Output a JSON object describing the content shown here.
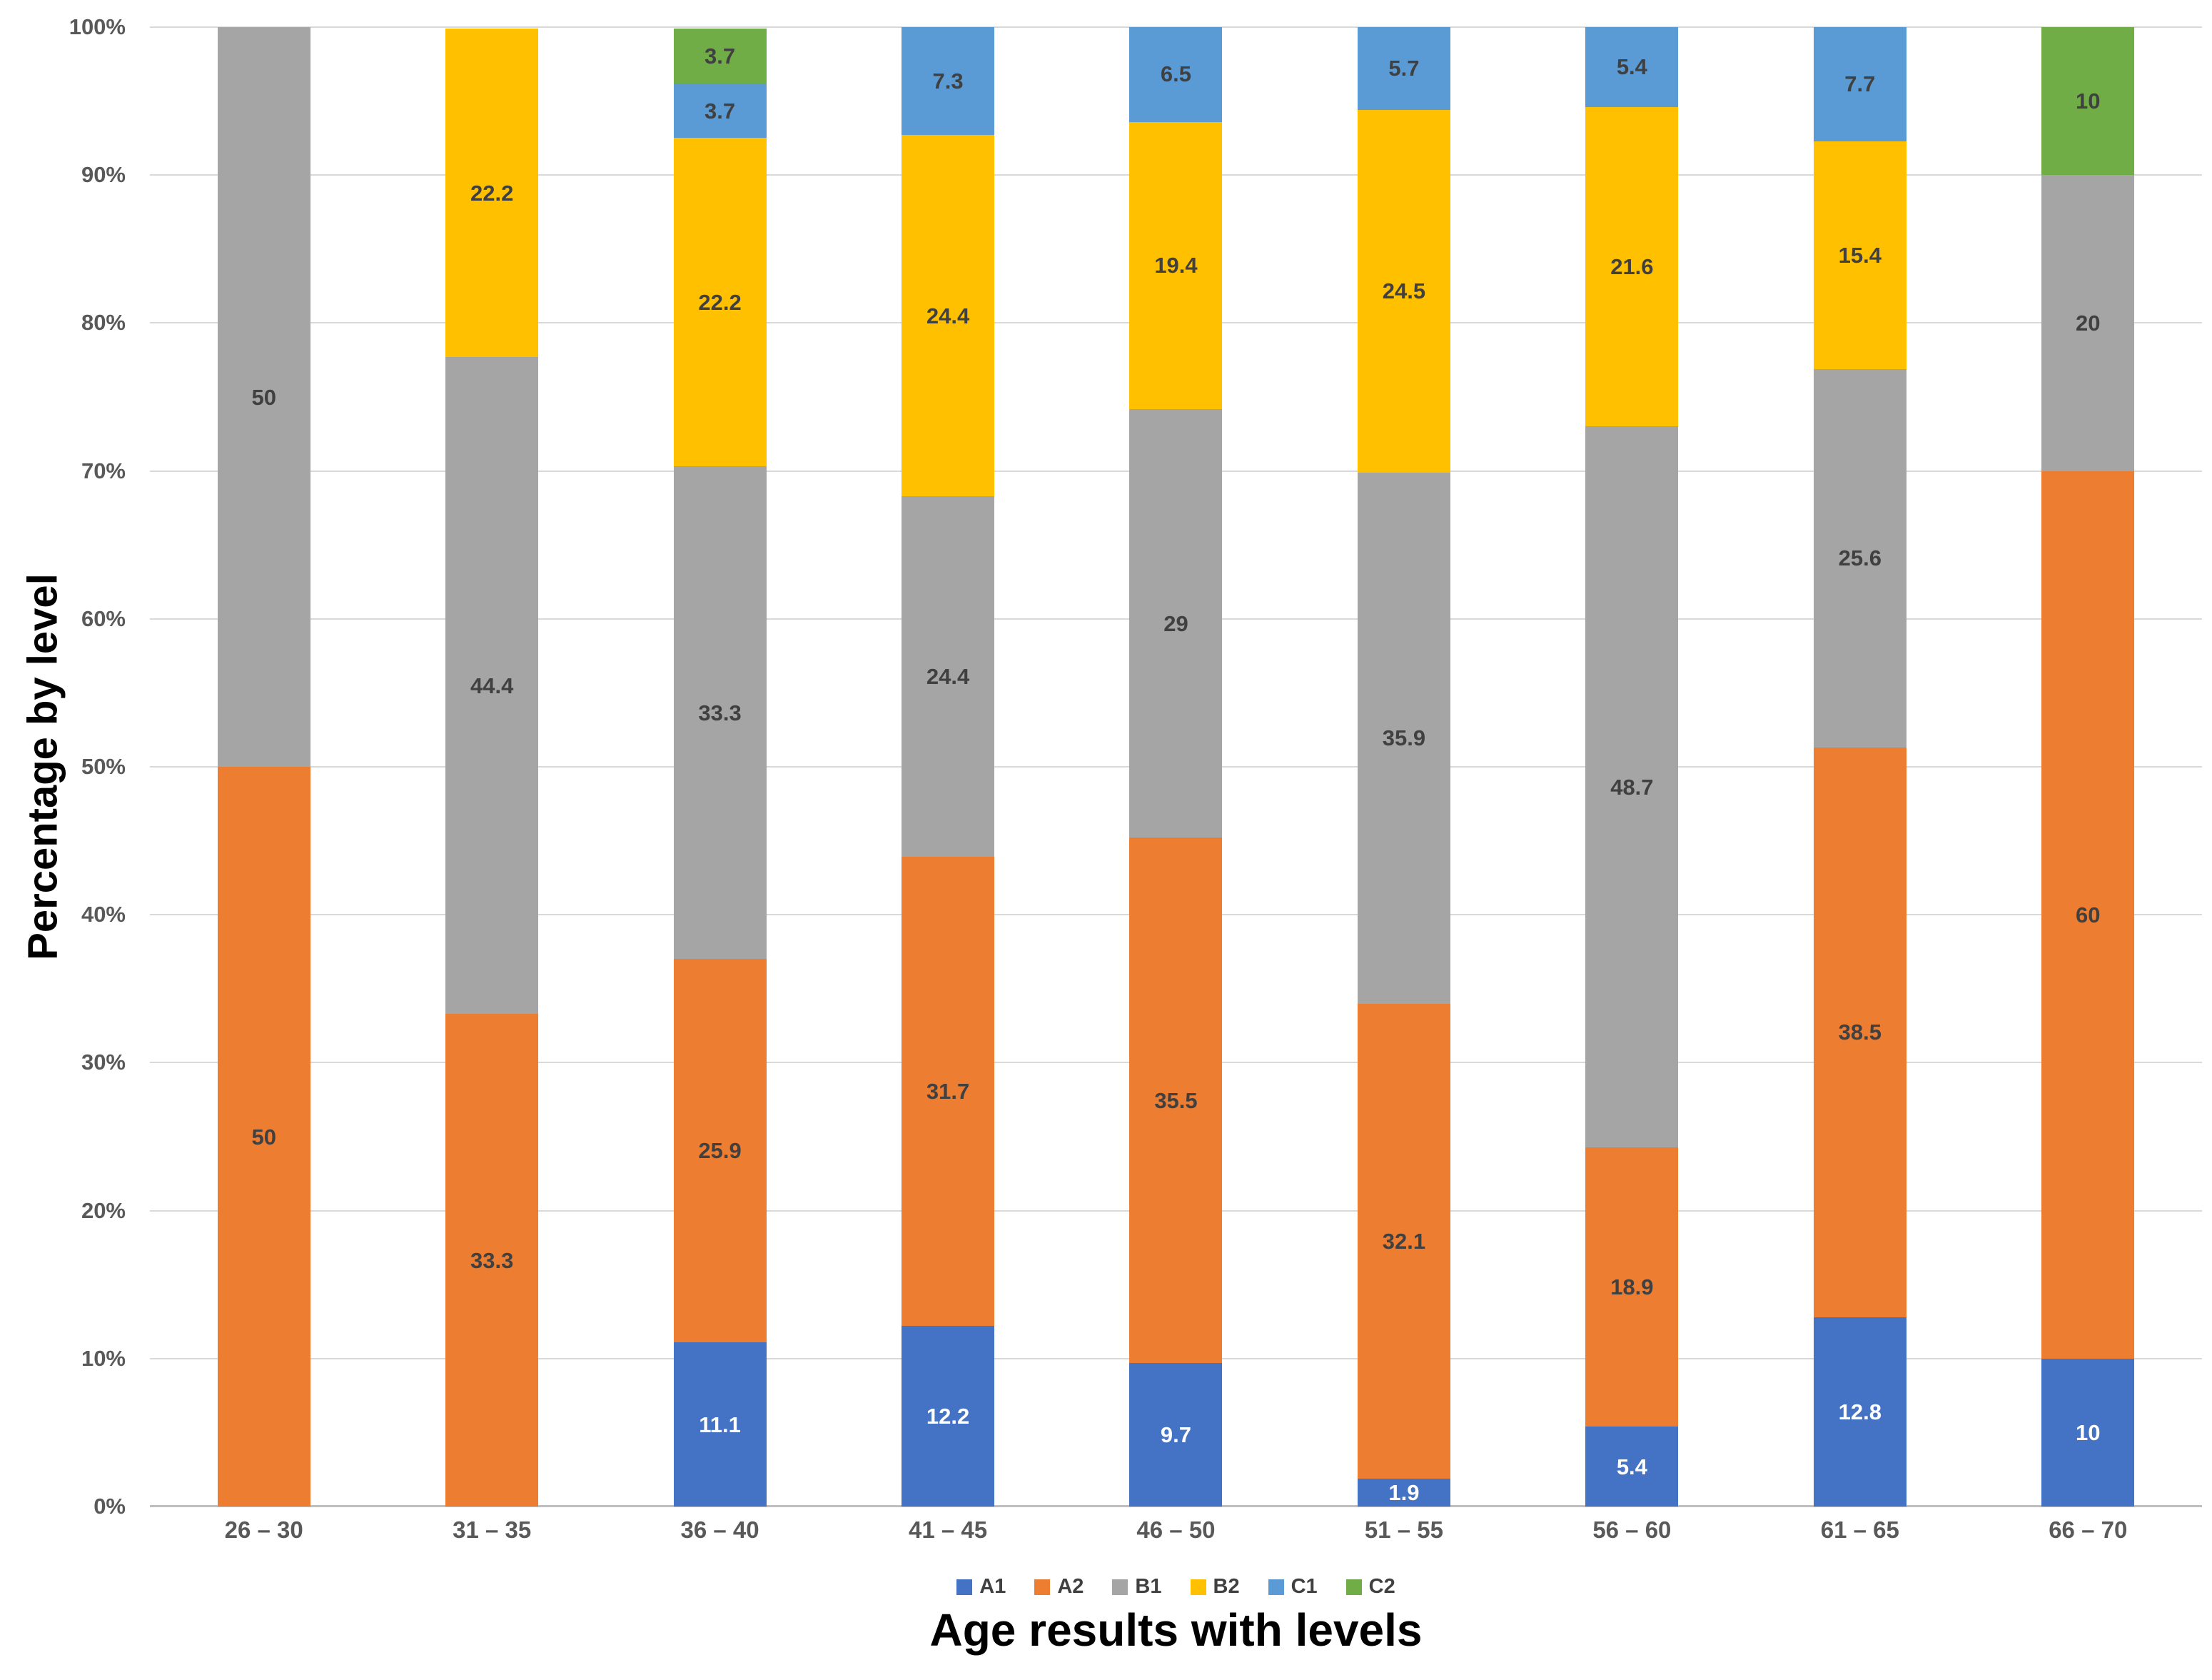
{
  "chart_data": {
    "type": "bar",
    "stacked": true,
    "percent_axis": true,
    "xlabel": "Age results with levels",
    "ylabel": "Percentage by level",
    "ylim": [
      0,
      100
    ],
    "grid": true,
    "legend_position": "bottom",
    "y_ticks": [
      "0%",
      "10%",
      "20%",
      "30%",
      "40%",
      "50%",
      "60%",
      "70%",
      "80%",
      "90%",
      "100%"
    ],
    "categories": [
      "26 – 30",
      "31 – 35",
      "36 – 40",
      "41 – 45",
      "46 – 50",
      "51 – 55",
      "56 – 60",
      "61 – 65",
      "66 – 70"
    ],
    "series": [
      {
        "name": "A1",
        "color": "#4472C4",
        "label_color": "#FFFFFF",
        "values": [
          0,
          0,
          11.1,
          12.2,
          9.7,
          1.9,
          5.4,
          12.8,
          10
        ]
      },
      {
        "name": "A2",
        "color": "#ED7D31",
        "label_color": "#404040",
        "values": [
          50,
          33.3,
          25.9,
          31.7,
          35.5,
          32.1,
          18.9,
          38.5,
          60
        ]
      },
      {
        "name": "B1",
        "color": "#A5A5A5",
        "label_color": "#404040",
        "values": [
          50,
          44.4,
          33.3,
          24.4,
          29,
          35.9,
          48.7,
          25.6,
          20
        ]
      },
      {
        "name": "B2",
        "color": "#FFC000",
        "label_color": "#404040",
        "values": [
          0,
          22.2,
          22.2,
          24.4,
          19.4,
          24.5,
          21.6,
          15.4,
          0
        ]
      },
      {
        "name": "C1",
        "color": "#5B9BD5",
        "label_color": "#404040",
        "values": [
          0,
          0,
          3.7,
          7.3,
          6.5,
          5.7,
          5.4,
          7.7,
          0
        ]
      },
      {
        "name": "C2",
        "color": "#70AD47",
        "label_color": "#404040",
        "values": [
          0,
          0,
          3.7,
          0,
          0,
          0,
          0,
          0,
          10
        ]
      }
    ],
    "colors": {
      "gridline": "#D9D9D9",
      "axis_line": "#BFBFBF",
      "tick_text": "#595959",
      "label_text": "#404040"
    }
  }
}
